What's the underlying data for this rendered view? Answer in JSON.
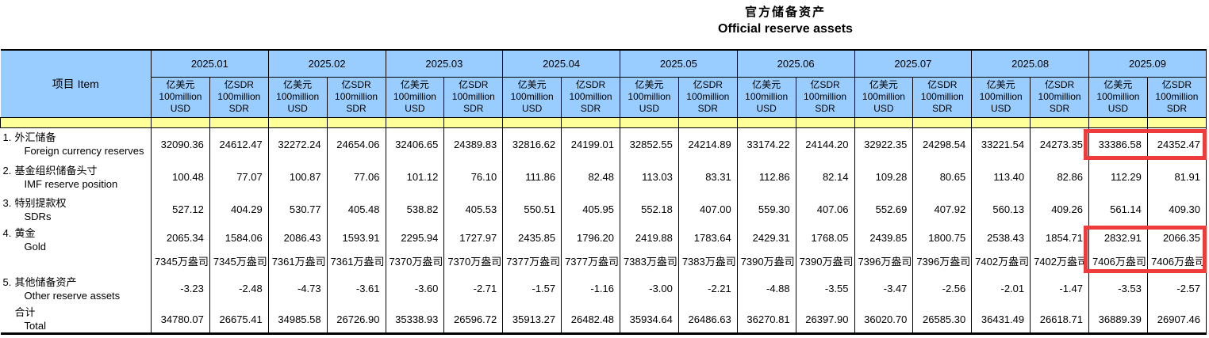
{
  "title": {
    "zh": "官方储备资产",
    "en": "Official reserve assets"
  },
  "table": {
    "item_header": "项目  Item",
    "months": [
      "2025.01",
      "2025.02",
      "2025.03",
      "2025.04",
      "2025.05",
      "2025.06",
      "2025.07",
      "2025.08",
      "2025.09"
    ],
    "usd_unit": "亿美元\n100million\nUSD",
    "sdr_unit": "亿SDR\n100million\nSDR",
    "rows": [
      {
        "num": "1.",
        "zh": "外汇储备",
        "en": "Foreign currency reserves",
        "values": [
          "32090.36",
          "24612.47",
          "32272.24",
          "24654.06",
          "32406.65",
          "24389.83",
          "32816.62",
          "24199.01",
          "32852.55",
          "24214.89",
          "33174.22",
          "24144.20",
          "32922.35",
          "24298.54",
          "33221.54",
          "24273.35",
          "33386.58",
          "24352.47"
        ]
      },
      {
        "num": "2.",
        "zh": "基金组织储备头寸",
        "en": "IMF reserve position",
        "values": [
          "100.48",
          "77.07",
          "100.87",
          "77.06",
          "101.12",
          "76.10",
          "111.86",
          "82.48",
          "113.03",
          "83.31",
          "112.86",
          "82.14",
          "109.28",
          "80.65",
          "113.40",
          "82.86",
          "112.29",
          "81.91"
        ]
      },
      {
        "num": "3.",
        "zh": "特别提款权",
        "en": "SDRs",
        "values": [
          "527.12",
          "404.29",
          "530.77",
          "405.48",
          "538.82",
          "405.53",
          "550.51",
          "405.95",
          "552.18",
          "407.00",
          "559.30",
          "407.06",
          "552.69",
          "407.92",
          "560.13",
          "409.26",
          "561.14",
          "409.30"
        ]
      },
      {
        "num": "4.",
        "zh": "黄金",
        "en": "Gold",
        "values": [
          "2065.34",
          "1584.06",
          "2086.43",
          "1593.91",
          "2295.94",
          "1727.97",
          "2435.85",
          "1796.20",
          "2419.88",
          "1783.64",
          "2429.31",
          "1768.05",
          "2439.85",
          "1800.75",
          "2538.43",
          "1854.71",
          "2832.91",
          "2066.35"
        ],
        "ounces": [
          "7345万盎司",
          "7345万盎司",
          "7361万盎司",
          "7361万盎司",
          "7370万盎司",
          "7370万盎司",
          "7377万盎司",
          "7377万盎司",
          "7383万盎司",
          "7383万盎司",
          "7390万盎司",
          "7390万盎司",
          "7396万盎司",
          "7396万盎司",
          "7402万盎司",
          "7402万盎司",
          "7406万盎司",
          "7406万盎司"
        ]
      },
      {
        "num": "5.",
        "zh": "其他储备资产",
        "en": "Other reserve assets",
        "values": [
          "-3.23",
          "-2.48",
          "-4.73",
          "-3.61",
          "-3.60",
          "-2.71",
          "-1.57",
          "-1.16",
          "-3.00",
          "-2.21",
          "-4.88",
          "-3.55",
          "-3.47",
          "-2.56",
          "-2.01",
          "-1.47",
          "-3.53",
          "-2.57"
        ]
      },
      {
        "num": "",
        "zh": "合计",
        "en": "Total",
        "values": [
          "34780.07",
          "26675.41",
          "34985.58",
          "26726.90",
          "35338.93",
          "26596.72",
          "35913.27",
          "26482.48",
          "35934.64",
          "26486.63",
          "36270.81",
          "26397.90",
          "36020.70",
          "26585.30",
          "36431.49",
          "26618.71",
          "36889.39",
          "26907.46"
        ]
      }
    ],
    "colors": {
      "header_blue": "#99ccff",
      "spacer_yellow": "#ffff99",
      "highlight_red": "#ee3b3b"
    },
    "highlights": [
      "2025.09 foreign currency reserves",
      "2025.09 gold"
    ]
  }
}
